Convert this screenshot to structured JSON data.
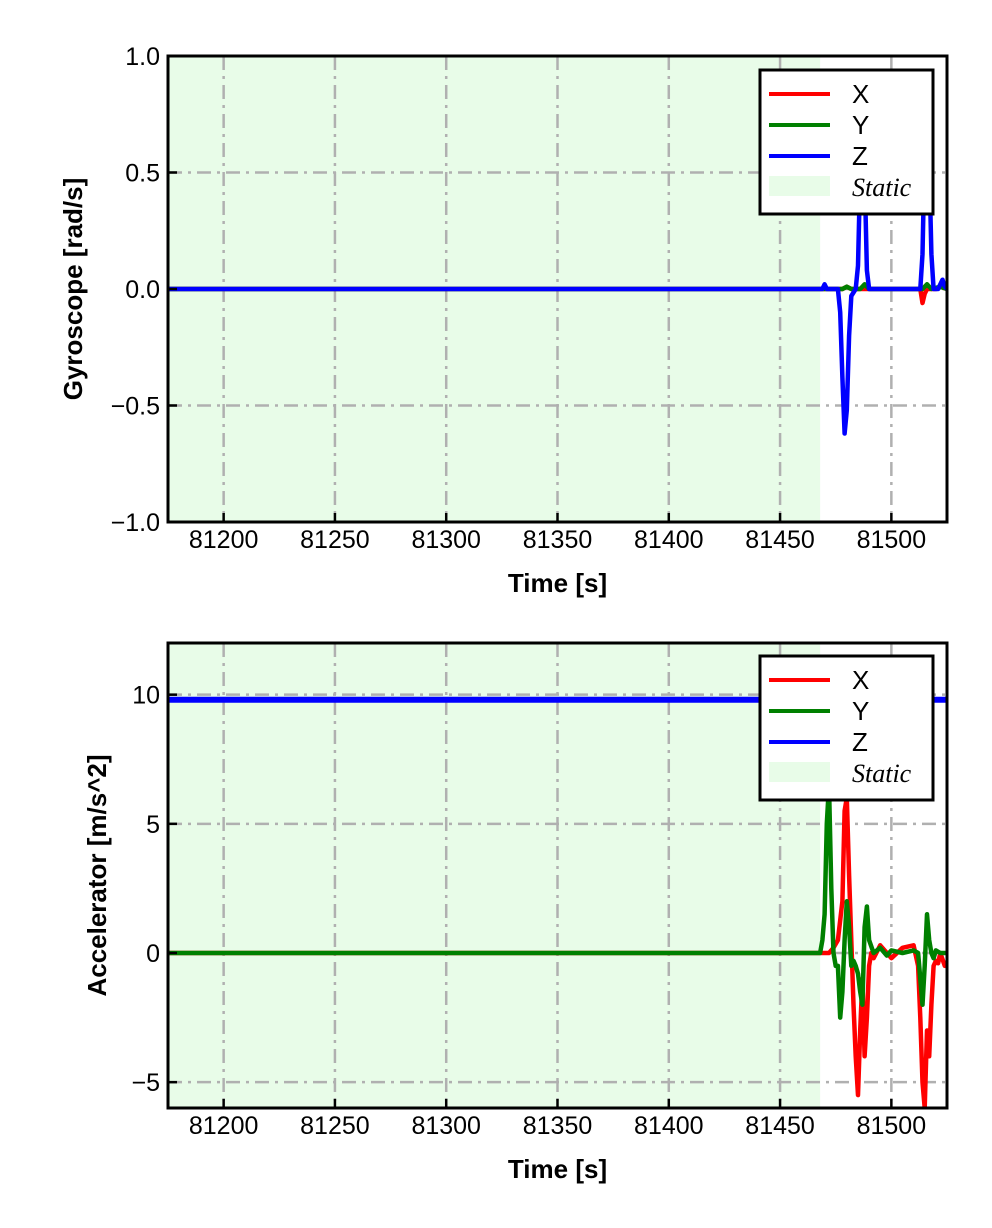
{
  "chart_data": [
    {
      "type": "line",
      "xlabel": "Time [s]",
      "ylabel": "Gyroscope [rad/s]",
      "xlim": [
        81175,
        81525
      ],
      "ylim": [
        -1.0,
        1.0
      ],
      "xticks": [
        81200,
        81250,
        81300,
        81350,
        81400,
        81450,
        81500
      ],
      "yticks": [
        -1.0,
        -0.5,
        0.0,
        0.5,
        1.0
      ],
      "ytick_labels": [
        "−1.0",
        "−0.5",
        "0.0",
        "0.5",
        "1.0"
      ],
      "grid": true,
      "legend_position": "top-right",
      "static_region": [
        81175,
        81468
      ],
      "colors": {
        "X": "#ff0000",
        "Y": "#008000",
        "Z": "#0000ff",
        "static": "#e8fce8",
        "grid": "#b0b0b0"
      },
      "legend": [
        "X",
        "Y",
        "Z",
        "Static"
      ],
      "series": [
        {
          "name": "X",
          "x": [
            81175,
            81468,
            81478,
            81480,
            81482,
            81487,
            81490,
            81513,
            81514,
            81515,
            81516,
            81520,
            81522,
            81525
          ],
          "y": [
            0,
            0,
            0,
            0.01,
            0,
            0,
            0,
            0,
            -0.06,
            -0.02,
            0,
            0,
            0.01,
            0
          ]
        },
        {
          "name": "Y",
          "x": [
            81175,
            81468,
            81478,
            81480,
            81482,
            81486,
            81488,
            81490,
            81514,
            81516,
            81518,
            81522,
            81525
          ],
          "y": [
            0,
            0,
            0,
            0.01,
            0,
            0,
            0.02,
            0,
            0,
            0.02,
            0,
            0.01,
            0
          ]
        },
        {
          "name": "Z",
          "x": [
            81175,
            81469,
            81470,
            81471,
            81472,
            81476,
            81477,
            81478,
            81479,
            81480,
            81481,
            81482,
            81484,
            81485,
            81486,
            81487,
            81488,
            81489,
            81490,
            81513,
            81514,
            81515,
            81516,
            81517,
            81518,
            81519,
            81520,
            81521,
            81522,
            81523,
            81524,
            81525
          ],
          "y": [
            0,
            0,
            0.02,
            0,
            0,
            0,
            -0.1,
            -0.38,
            -0.62,
            -0.52,
            -0.2,
            -0.03,
            0,
            0.1,
            0.5,
            0.85,
            0.5,
            0.08,
            0,
            0,
            0.15,
            0.6,
            0.8,
            0.55,
            0.15,
            0,
            0,
            0,
            0.02,
            0.04,
            0.01,
            0
          ]
        }
      ]
    },
    {
      "type": "line",
      "xlabel": "Time [s]",
      "ylabel": "Accelerator [m/s^2]",
      "xlim": [
        81175,
        81525
      ],
      "ylim": [
        -6,
        12
      ],
      "xticks": [
        81200,
        81250,
        81300,
        81350,
        81400,
        81450,
        81500
      ],
      "yticks": [
        -5,
        0,
        5,
        10
      ],
      "ytick_labels": [
        "−5",
        "0",
        "5",
        "10"
      ],
      "grid": true,
      "legend_position": "top-right",
      "static_region": [
        81175,
        81468
      ],
      "colors": {
        "X": "#ff0000",
        "Y": "#008000",
        "Z": "#0000ff",
        "static": "#e8fce8",
        "grid": "#b0b0b0"
      },
      "legend": [
        "X",
        "Y",
        "Z",
        "Static"
      ],
      "series": [
        {
          "name": "X",
          "x": [
            81175,
            81468,
            81472,
            81474,
            81476,
            81478,
            81479,
            81480,
            81481,
            81482,
            81483,
            81484,
            81485,
            81486,
            81487,
            81488,
            81489,
            81490,
            81491,
            81492,
            81495,
            81500,
            81505,
            81510,
            81512,
            81513,
            81514,
            81515,
            81516,
            81517,
            81518,
            81519,
            81520,
            81521,
            81522,
            81524,
            81525
          ],
          "y": [
            0,
            0,
            0,
            0.2,
            0.5,
            2.0,
            5.5,
            6.0,
            3.0,
            0.5,
            -2.0,
            -4.0,
            -5.5,
            -3.0,
            -1.0,
            -4.0,
            -2.5,
            -0.5,
            0,
            -0.2,
            0.3,
            -0.2,
            0.2,
            0.3,
            -0.5,
            -2.5,
            -5.0,
            -6.0,
            -3.0,
            -4.0,
            -2.0,
            -0.5,
            -0.3,
            -0.4,
            0,
            -0.5,
            -0.4
          ]
        },
        {
          "name": "Y",
          "x": [
            81175,
            81468,
            81469,
            81470,
            81471,
            81472,
            81473,
            81474,
            81475,
            81476,
            81477,
            81478,
            81479,
            81480,
            81481,
            81482,
            81483,
            81484,
            81485,
            81486,
            81487,
            81488,
            81489,
            81490,
            81492,
            81495,
            81498,
            81500,
            81505,
            81510,
            81512,
            81513,
            81514,
            81515,
            81516,
            81517,
            81518,
            81519,
            81520,
            81522,
            81525
          ],
          "y": [
            0,
            0,
            0.5,
            1.5,
            5.0,
            6.5,
            2.5,
            0,
            -0.5,
            -0.5,
            -2.5,
            -1.5,
            0.5,
            2.0,
            1.0,
            -0.5,
            -0.3,
            -0.5,
            -0.8,
            -1.5,
            -2.0,
            1.0,
            1.8,
            0.5,
            0,
            0.2,
            -0.1,
            0.1,
            0,
            0.1,
            0,
            -1.0,
            -2.0,
            -0.5,
            1.5,
            0.5,
            0,
            -0.2,
            0.1,
            0,
            0
          ]
        },
        {
          "name": "Z",
          "x": [
            81175,
            81525
          ],
          "y": [
            9.8,
            9.8
          ]
        }
      ]
    }
  ]
}
